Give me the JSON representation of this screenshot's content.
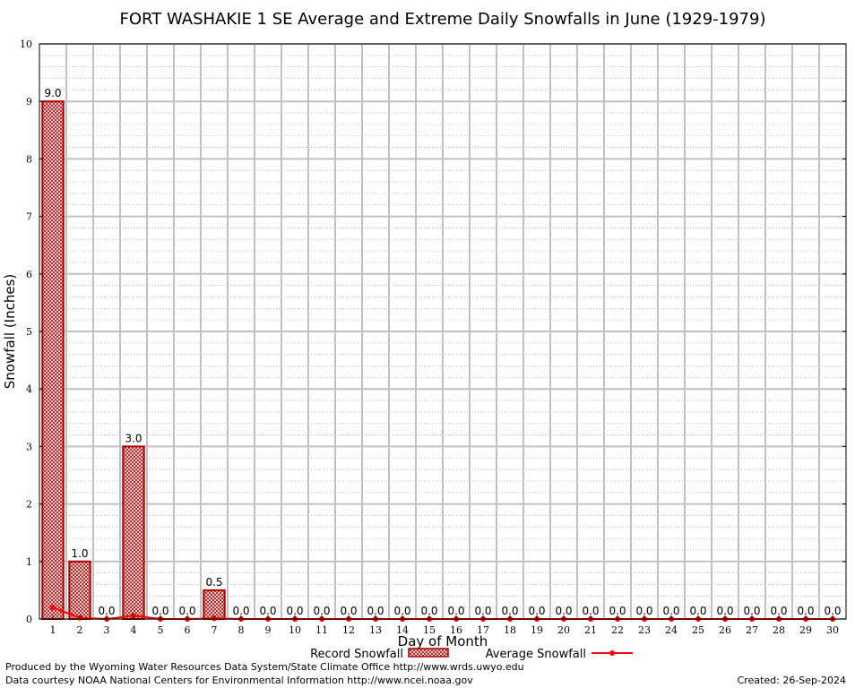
{
  "chart_data": {
    "type": "bar",
    "title": "FORT WASHAKIE 1 SE Average and Extreme Daily Snowfalls in June (1929-1979)",
    "xlabel": "Day of Month",
    "ylabel": "Snowfall (Inches)",
    "ylim": [
      0,
      10
    ],
    "yticks": [
      "0",
      "1",
      "2",
      "3",
      "4",
      "5",
      "6",
      "7",
      "8",
      "9",
      "10"
    ],
    "categories": [
      "1",
      "2",
      "3",
      "4",
      "5",
      "6",
      "7",
      "8",
      "9",
      "10",
      "11",
      "12",
      "13",
      "14",
      "15",
      "16",
      "17",
      "18",
      "19",
      "20",
      "21",
      "22",
      "23",
      "24",
      "25",
      "26",
      "27",
      "28",
      "29",
      "30"
    ],
    "series": [
      {
        "name": "Record Snowfall",
        "type": "bar",
        "color": "#b00000",
        "values": [
          9.0,
          1.0,
          0.0,
          3.0,
          0.0,
          0.0,
          0.5,
          0.0,
          0.0,
          0.0,
          0.0,
          0.0,
          0.0,
          0.0,
          0.0,
          0.0,
          0.0,
          0.0,
          0.0,
          0.0,
          0.0,
          0.0,
          0.0,
          0.0,
          0.0,
          0.0,
          0.0,
          0.0,
          0.0,
          0.0
        ],
        "labels": [
          "9.0",
          "1.0",
          "0.0",
          "3.0",
          "0.0",
          "0.0",
          "0.5",
          "0.0",
          "0.0",
          "0.0",
          "0.0",
          "0.0",
          "0.0",
          "0.0",
          "0.0",
          "0.0",
          "0.0",
          "0.0",
          "0.0",
          "0.0",
          "0.0",
          "0.0",
          "0.0",
          "0.0",
          "0.0",
          "0.0",
          "0.0",
          "0.0",
          "0.0",
          "0.0"
        ]
      },
      {
        "name": "Average Snowfall",
        "type": "line",
        "color": "#ff0000",
        "values": [
          0.2,
          0.02,
          0.0,
          0.06,
          0.0,
          0.0,
          0.01,
          0.0,
          0.0,
          0.0,
          0.0,
          0.0,
          0.0,
          0.0,
          0.0,
          0.0,
          0.0,
          0.0,
          0.0,
          0.0,
          0.0,
          0.0,
          0.0,
          0.0,
          0.0,
          0.0,
          0.0,
          0.0,
          0.0,
          0.0
        ]
      }
    ],
    "grid": true,
    "legend_position": "bottom-center"
  },
  "footer": {
    "produced_by": "Produced by the Wyoming Water Resources Data System/State Climate Office http://www.wrds.uwyo.edu",
    "data_courtesy": "Data courtesy NOAA National Centers for Environmental Information http://www.ncei.noaa.gov",
    "created": "Created: 26-Sep-2024"
  }
}
